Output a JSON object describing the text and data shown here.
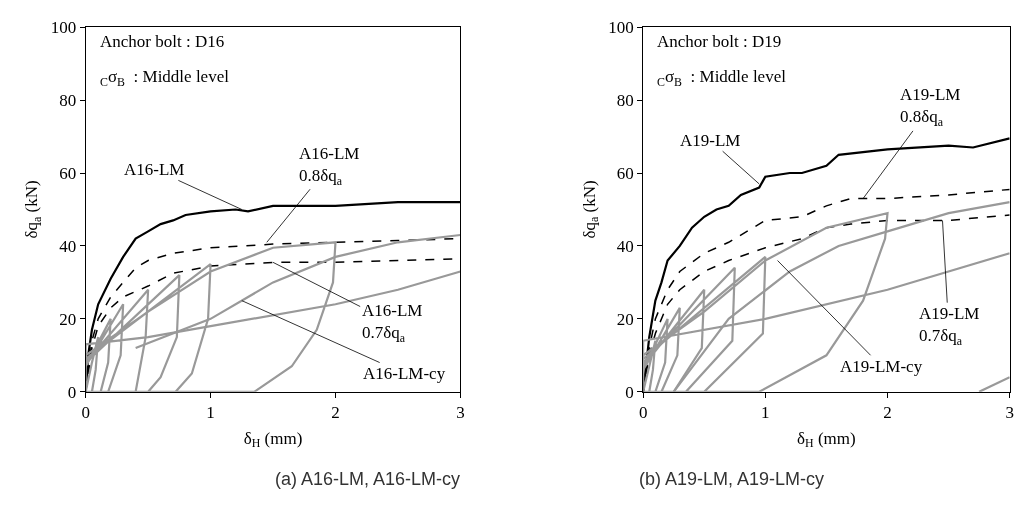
{
  "chart_data": [
    {
      "type": "line",
      "title": "(a) A16-LM, A16-LM-cy",
      "xlabel": "δ$_{H}$ (mm)",
      "ylabel": "δq$_{a}$ (kN)",
      "xlim": [
        0,
        3
      ],
      "ylim": [
        0,
        100
      ],
      "xticks": [
        0,
        1,
        2,
        3
      ],
      "yticks": [
        0,
        20,
        40,
        60,
        80,
        100
      ],
      "annotations": [
        "Anchor bolt : D16",
        "$_{C}$σ$_{B}$  : Middle level",
        {
          "text": "A16-LM",
          "x": 1.25,
          "y": 50
        },
        {
          "text": "A16-LM\n0.8δq$_{a}$",
          "x": 1.45,
          "y": 41
        },
        {
          "text": "A16-LM\n0.7δq$_{a}$",
          "x": 1.5,
          "y": 35.5
        },
        {
          "text": "A16-LM-cy",
          "x": 1.25,
          "y": 25
        }
      ],
      "series": [
        {
          "color": "#000000",
          "line_style": "solid",
          "x": [
            0,
            0.02,
            0.05,
            0.1,
            0.2,
            0.3,
            0.4,
            0.5,
            0.6,
            0.7,
            0.8,
            1.0,
            1.2,
            1.3,
            1.5,
            2,
            2.5,
            3
          ],
          "values": [
            0,
            10,
            17,
            24,
            31,
            37,
            42,
            44,
            46,
            47,
            48.5,
            49.5,
            50,
            49.5,
            51,
            51,
            52,
            52
          ]
        },
        {
          "color": "#000000",
          "line_style": "dashed",
          "x": [
            0,
            0.05,
            0.1,
            0.2,
            0.3,
            0.4,
            0.5,
            0.7,
            1,
            1.5,
            2,
            2.5,
            3
          ],
          "values": [
            0,
            14,
            20,
            26,
            30,
            34,
            36,
            38,
            39.5,
            40.5,
            41,
            41.5,
            42
          ]
        },
        {
          "color": "#000000",
          "line_style": "dashed",
          "x": [
            0,
            0.05,
            0.1,
            0.2,
            0.3,
            0.5,
            0.7,
            1,
            1.5,
            2,
            2.5,
            3
          ],
          "values": [
            0,
            12,
            18,
            23,
            26,
            29,
            32.5,
            34.5,
            35.5,
            35.5,
            36,
            36.5
          ]
        },
        {
          "color": "#999999",
          "line_style": "solid",
          "x": [
            0,
            0.05,
            0.1,
            0.08,
            0.05,
            0,
            0,
            0.2,
            0.18,
            0.12,
            0,
            0,
            0.3,
            0.28,
            0.18,
            0,
            0,
            0.5,
            0.48,
            0.4,
            0,
            0,
            0.75,
            0.73,
            0.6,
            0.5,
            0,
            0,
            1,
            0.98,
            0.85,
            0.72,
            0,
            0,
            0.5,
            1,
            1.5,
            2,
            1.98,
            1.85,
            1.65,
            1.35,
            0,
            0,
            0.5,
            1,
            2,
            2.5,
            3,
            null,
            0.4,
            1,
            1.5,
            2,
            2.5,
            3
          ],
          "values": [
            0,
            8,
            15,
            6,
            0,
            0,
            7,
            20,
            8,
            0,
            0,
            7,
            24,
            10,
            0,
            0,
            8,
            28,
            15,
            0,
            0,
            8,
            32,
            15,
            4,
            0,
            0,
            9,
            35,
            20,
            5,
            0,
            0,
            10,
            22,
            33,
            39.5,
            41,
            30,
            17,
            7,
            0,
            0,
            13,
            15,
            18,
            24,
            28,
            33,
            null,
            12,
            20,
            30,
            37,
            41,
            43
          ]
        }
      ]
    },
    {
      "type": "line",
      "title": "(b) A19-LM, A19-LM-cy",
      "xlabel": "δ$_{H}$ (mm)",
      "ylabel": "δq$_{a}$ (kN)",
      "xlim": [
        0,
        3
      ],
      "ylim": [
        0,
        100
      ],
      "xticks": [
        0,
        1,
        2,
        3
      ],
      "yticks": [
        0,
        20,
        40,
        60,
        80,
        100
      ],
      "annotations": [
        "Anchor bolt : D19",
        "$_{C}$σ$_{B}$  : Middle level",
        {
          "text": "A19-LM",
          "x": 0.95,
          "y": 57
        },
        {
          "text": "A19-LM\n0.8δq$_{a}$",
          "x": 1.8,
          "y": 53
        },
        {
          "text": "A19-LM\n0.7δq$_{a}$",
          "x": 2.45,
          "y": 47
        },
        {
          "text": "A19-LM-cy",
          "x": 1.1,
          "y": 36
        }
      ],
      "series": [
        {
          "color": "#000000",
          "line_style": "solid",
          "x": [
            0,
            0.05,
            0.1,
            0.15,
            0.2,
            0.3,
            0.4,
            0.5,
            0.6,
            0.7,
            0.8,
            0.95,
            1,
            1.2,
            1.3,
            1.5,
            1.6,
            2,
            2.5,
            2.7,
            3
          ],
          "values": [
            0,
            15,
            25,
            30,
            36,
            40,
            45,
            48,
            50,
            51,
            54,
            56,
            59,
            60,
            60,
            62,
            65,
            66.5,
            67.5,
            67,
            69.5
          ]
        },
        {
          "color": "#000000",
          "line_style": "dashed",
          "x": [
            0,
            0.05,
            0.1,
            0.2,
            0.3,
            0.5,
            0.7,
            1,
            1.3,
            1.5,
            1.7,
            2,
            2.5,
            3
          ],
          "values": [
            0,
            12,
            20,
            28,
            33,
            38,
            41,
            47,
            48,
            51,
            53,
            53,
            54,
            55.5
          ]
        },
        {
          "color": "#000000",
          "line_style": "dashed",
          "x": [
            0,
            0.05,
            0.1,
            0.2,
            0.3,
            0.5,
            0.7,
            1,
            1.3,
            1.5,
            1.7,
            2,
            2.5,
            3
          ],
          "values": [
            0,
            10,
            16,
            24,
            28,
            33,
            36,
            39.5,
            42,
            45,
            46,
            47,
            47,
            48.5
          ]
        },
        {
          "color": "#999999",
          "line_style": "solid",
          "x": [
            0,
            0.05,
            0.1,
            0.08,
            0.05,
            0,
            0,
            0.2,
            0.18,
            0.1,
            0,
            0,
            0.3,
            0.28,
            0.15,
            0,
            0,
            0.5,
            0.48,
            0.25,
            0,
            0,
            0.75,
            0.73,
            0.35,
            0,
            0,
            1,
            0.98,
            0.5,
            0,
            0,
            0.5,
            1,
            1.5,
            2,
            1.98,
            1.8,
            1.5,
            0.95,
            0,
            0,
            1,
            2,
            3,
            null,
            0.25,
            0.7,
            1.2,
            1.6,
            2,
            2.5,
            3,
            null,
            2.75,
            3
          ],
          "values": [
            0,
            7,
            14,
            6,
            0,
            0,
            6,
            20,
            8,
            0,
            0,
            6,
            23,
            10,
            0,
            0,
            7,
            28,
            12,
            0,
            0,
            8,
            34,
            14,
            0,
            0,
            9,
            37,
            16,
            0,
            0,
            10,
            22,
            36,
            45,
            49,
            42,
            25,
            10,
            0,
            0,
            14,
            20,
            28,
            38,
            null,
            0,
            20,
            33,
            40,
            44,
            49,
            52,
            null,
            0,
            4
          ]
        }
      ]
    }
  ]
}
